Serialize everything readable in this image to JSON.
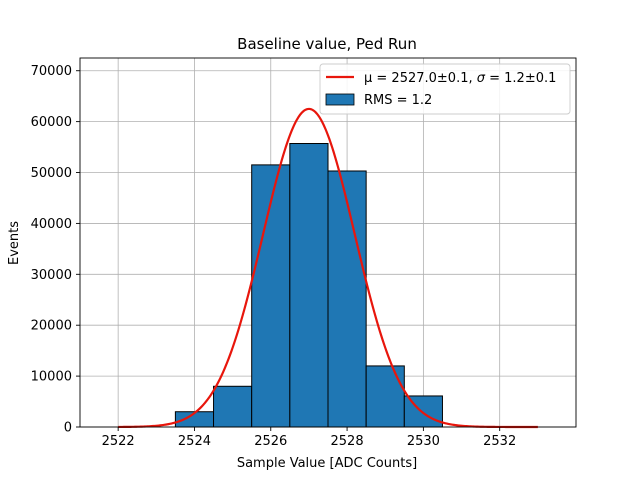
{
  "chart_data": {
    "type": "bar",
    "title": "Baseline value, Ped Run",
    "xlabel": "Sample Value [ADC Counts]",
    "ylabel": "Events",
    "xlim": [
      2521,
      2534
    ],
    "ylim": [
      0,
      72500
    ],
    "xticks": [
      2522,
      2524,
      2526,
      2528,
      2530,
      2532
    ],
    "xtick_labels": [
      "2522",
      "2524",
      "2526",
      "2528",
      "2530",
      "2532"
    ],
    "yticks": [
      0,
      10000,
      20000,
      30000,
      40000,
      50000,
      60000,
      70000
    ],
    "ytick_labels": [
      "0",
      "10000",
      "20000",
      "30000",
      "40000",
      "50000",
      "60000",
      "70000"
    ],
    "grid": true,
    "legend_placement": "top-right",
    "colors": {
      "bars": "#1f77b4",
      "fit": "#e8160c",
      "edge": "#000000"
    },
    "histogram": {
      "name": "RMS = 1.2",
      "bin_edges": [
        2523.5,
        2524.5,
        2525.5,
        2526.5,
        2527.5,
        2528.5,
        2529.5,
        2530.5
      ],
      "counts": [
        3000,
        8000,
        51500,
        55700,
        50300,
        12000,
        6100
      ]
    },
    "fit": {
      "name_prefix": "μ = 2527.0±0.1, ",
      "name_sigma": "σ",
      "name_suffix": " = 1.2±0.1",
      "mu": 2527.0,
      "sigma": 1.2,
      "amplitude": 62500,
      "x_range": [
        2522,
        2533
      ]
    }
  }
}
